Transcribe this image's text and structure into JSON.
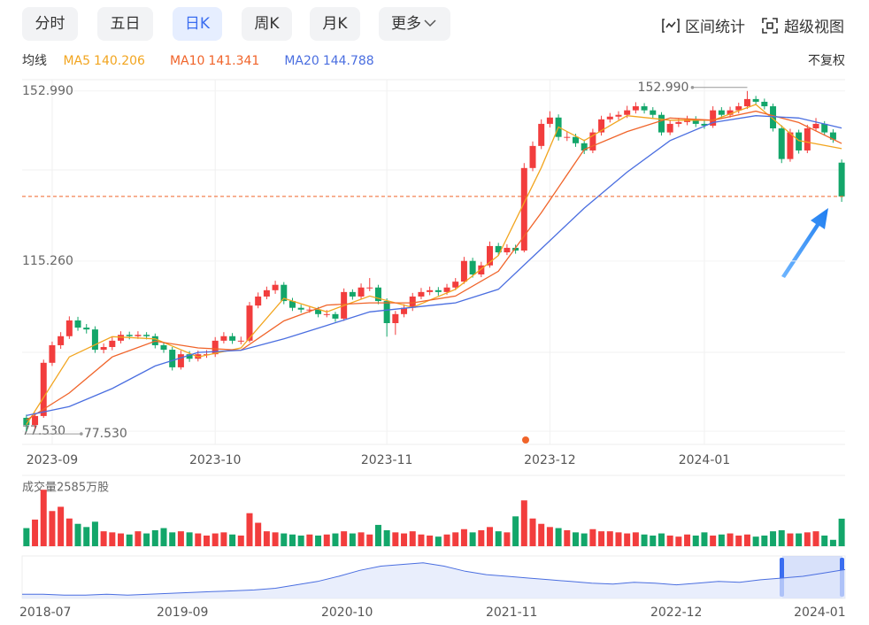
{
  "toolbar": {
    "tabs": [
      "分时",
      "五日",
      "日K",
      "周K",
      "月K",
      "更多"
    ],
    "active": 2,
    "tools": [
      "区间统计",
      "超级视图"
    ]
  },
  "legend": {
    "title": "均线",
    "adjust": "不复权"
  },
  "chart_data": {
    "type": "candlestick",
    "up_color": "#f23d3d",
    "down_color": "#13a66a",
    "xlim": [
      -0.5,
      95.4
    ],
    "ylim": [
      74.6,
      155.5
    ],
    "yticks": [
      {
        "value": 152.99,
        "label": "152.990"
      },
      {
        "value": 115.26,
        "label": "115.260"
      },
      {
        "value": 77.53,
        "label": "77.530"
      }
    ],
    "xticks": [
      {
        "value": 3,
        "label": "2023-09"
      },
      {
        "value": 22,
        "label": "2023-10"
      },
      {
        "value": 42,
        "label": "2023-11"
      },
      {
        "value": 61,
        "label": "2023-12"
      },
      {
        "value": 79,
        "label": "2024-01"
      }
    ],
    "candles": [
      [
        80.5,
        81.2,
        77.53,
        78.9
      ],
      [
        78.9,
        81.6,
        78.2,
        80.9
      ],
      [
        80.9,
        93.4,
        80.5,
        92.7
      ],
      [
        92.7,
        97.4,
        92.0,
        96.6
      ],
      [
        96.6,
        99.5,
        95.8,
        98.6
      ],
      [
        98.6,
        103.0,
        98.0,
        102.1
      ],
      [
        102.1,
        102.9,
        99.8,
        100.5
      ],
      [
        100.5,
        101.3,
        99.2,
        100.1
      ],
      [
        100.1,
        100.8,
        94.9,
        95.6
      ],
      [
        95.6,
        97.0,
        94.8,
        96.2
      ],
      [
        96.2,
        98.4,
        95.5,
        97.6
      ],
      [
        97.6,
        99.7,
        97.0,
        98.9
      ],
      [
        98.9,
        99.6,
        97.9,
        98.6
      ],
      [
        98.6,
        99.7,
        98.0,
        98.9
      ],
      [
        98.9,
        99.5,
        97.9,
        98.6
      ],
      [
        98.6,
        99.2,
        95.9,
        96.6
      ],
      [
        96.6,
        97.3,
        94.9,
        95.6
      ],
      [
        95.6,
        96.2,
        91.0,
        91.7
      ],
      [
        91.7,
        95.4,
        91.2,
        94.6
      ],
      [
        94.6,
        95.3,
        92.9,
        93.6
      ],
      [
        93.6,
        95.4,
        93.0,
        94.6
      ],
      [
        94.6,
        95.5,
        93.8,
        94.6
      ],
      [
        94.6,
        98.4,
        94.0,
        97.6
      ],
      [
        97.6,
        99.5,
        97.0,
        98.6
      ],
      [
        98.6,
        99.3,
        96.9,
        97.6
      ],
      [
        97.6,
        98.5,
        96.8,
        97.6
      ],
      [
        97.6,
        106.2,
        97.2,
        105.4
      ],
      [
        105.4,
        108.3,
        104.8,
        107.4
      ],
      [
        107.4,
        109.6,
        106.8,
        108.8
      ],
      [
        108.8,
        110.9,
        108.0,
        110.0
      ],
      [
        110.0,
        110.6,
        105.7,
        106.4
      ],
      [
        106.4,
        107.1,
        104.2,
        104.9
      ],
      [
        104.9,
        105.6,
        103.8,
        104.5
      ],
      [
        104.5,
        105.3,
        103.8,
        104.5
      ],
      [
        104.5,
        105.1,
        102.8,
        103.5
      ],
      [
        103.5,
        104.4,
        102.8,
        103.5
      ],
      [
        103.5,
        104.0,
        101.8,
        102.5
      ],
      [
        102.5,
        109.2,
        102.0,
        108.4
      ],
      [
        108.4,
        109.0,
        106.7,
        107.4
      ],
      [
        107.4,
        110.3,
        106.9,
        109.4
      ],
      [
        109.4,
        111.5,
        108.6,
        109.4
      ],
      [
        109.4,
        110.0,
        105.7,
        106.4
      ],
      [
        106.4,
        107.0,
        98.5,
        101.5
      ],
      [
        101.5,
        104.2,
        98.9,
        103.5
      ],
      [
        103.5,
        105.7,
        102.8,
        104.9
      ],
      [
        104.9,
        108.2,
        104.2,
        107.4
      ],
      [
        107.4,
        109.3,
        106.8,
        108.4
      ],
      [
        108.4,
        109.6,
        107.7,
        108.8
      ],
      [
        108.8,
        109.5,
        107.6,
        108.4
      ],
      [
        108.4,
        110.2,
        107.8,
        109.4
      ],
      [
        109.4,
        111.5,
        108.8,
        110.7
      ],
      [
        110.7,
        116.2,
        110.2,
        115.3
      ],
      [
        115.3,
        116.0,
        111.6,
        112.3
      ],
      [
        112.3,
        115.1,
        111.7,
        114.3
      ],
      [
        114.3,
        119.6,
        113.8,
        118.6
      ],
      [
        118.6,
        119.3,
        116.5,
        117.2
      ],
      [
        117.2,
        119.0,
        116.6,
        118.2
      ],
      [
        118.2,
        118.9,
        116.9,
        117.6
      ],
      [
        117.6,
        137.0,
        117.2,
        135.9
      ],
      [
        135.9,
        141.8,
        135.2,
        140.8
      ],
      [
        140.8,
        146.7,
        140.1,
        145.7
      ],
      [
        145.7,
        148.5,
        144.9,
        147.1
      ],
      [
        147.1,
        147.8,
        142.0,
        142.8
      ],
      [
        142.8,
        144.0,
        141.9,
        142.8
      ],
      [
        142.8,
        143.5,
        140.6,
        141.4
      ],
      [
        141.4,
        142.2,
        139.0,
        139.8
      ],
      [
        139.8,
        144.6,
        139.2,
        143.8
      ],
      [
        143.8,
        147.5,
        143.1,
        146.7
      ],
      [
        146.7,
        148.1,
        146.0,
        147.3
      ],
      [
        147.3,
        148.5,
        146.6,
        147.7
      ],
      [
        147.7,
        149.7,
        147.0,
        148.7
      ],
      [
        148.7,
        150.5,
        148.0,
        149.6
      ],
      [
        149.6,
        150.3,
        148.0,
        148.7
      ],
      [
        148.7,
        149.4,
        147.0,
        147.7
      ],
      [
        147.7,
        148.3,
        143.1,
        143.8
      ],
      [
        143.8,
        146.5,
        143.2,
        145.7
      ],
      [
        145.7,
        147.0,
        145.0,
        146.1
      ],
      [
        146.1,
        147.5,
        145.4,
        146.7
      ],
      [
        146.7,
        147.4,
        145.0,
        145.7
      ],
      [
        145.7,
        146.4,
        144.6,
        145.3
      ],
      [
        145.3,
        149.6,
        144.8,
        148.7
      ],
      [
        148.7,
        149.4,
        147.0,
        147.7
      ],
      [
        147.7,
        149.5,
        147.1,
        148.7
      ],
      [
        148.7,
        150.4,
        148.0,
        149.6
      ],
      [
        149.6,
        152.99,
        149.0,
        151.2
      ],
      [
        151.2,
        151.9,
        149.9,
        150.6
      ],
      [
        150.6,
        151.3,
        148.9,
        149.6
      ],
      [
        149.6,
        150.2,
        144.0,
        144.7
      ],
      [
        144.7,
        145.4,
        137.0,
        137.9
      ],
      [
        137.9,
        144.6,
        137.3,
        143.8
      ],
      [
        143.8,
        144.4,
        139.1,
        139.8
      ],
      [
        139.8,
        145.5,
        139.2,
        144.7
      ],
      [
        144.7,
        147.0,
        144.0,
        145.7
      ],
      [
        145.7,
        146.3,
        143.1,
        143.8
      ],
      [
        143.8,
        144.5,
        141.5,
        142.2
      ],
      [
        137.1,
        137.8,
        128.4,
        129.6
      ]
    ],
    "series": [
      {
        "name": "MA5",
        "color": "#f2a51f",
        "x": [
          0,
          5,
          10,
          15,
          20,
          25,
          30,
          35,
          40,
          45,
          50,
          55,
          60,
          62,
          65,
          70,
          75,
          80,
          85,
          90,
          95
        ],
        "values": [
          79,
          94,
          98.5,
          98,
          94,
          96,
          107,
          104,
          107.5,
          105,
          109,
          116.5,
          136,
          145,
          142,
          147.5,
          146.5,
          146.5,
          150,
          142,
          140.206
        ]
      },
      {
        "name": "MA10",
        "color": "#f0642a",
        "x": [
          0,
          5,
          10,
          15,
          20,
          25,
          30,
          35,
          40,
          45,
          50,
          55,
          60,
          65,
          70,
          75,
          80,
          85,
          90,
          95
        ],
        "values": [
          80,
          86,
          94,
          97.5,
          96,
          95.5,
          102,
          105.5,
          106,
          106,
          107.5,
          113,
          126,
          140,
          144,
          147,
          146.5,
          148.5,
          146,
          141.341
        ]
      },
      {
        "name": "MA20",
        "color": "#4a6ee0",
        "x": [
          0,
          5,
          10,
          15,
          20,
          25,
          30,
          35,
          40,
          45,
          50,
          55,
          60,
          65,
          70,
          75,
          80,
          85,
          90,
          95
        ],
        "values": [
          81,
          83,
          87,
          92,
          95,
          95.5,
          98,
          101,
          104,
          105,
          106,
          109,
          118,
          127,
          135,
          142,
          146,
          147.5,
          147,
          144.788
        ]
      }
    ],
    "annotations": [
      {
        "value": 152.99,
        "label": "152.990"
      },
      {
        "value": 77.53,
        "label": "77.530"
      }
    ],
    "volume": {
      "label": "成交量2585万股",
      "ylim": [
        0,
        5400
      ],
      "values": [
        1700,
        2500,
        5300,
        3300,
        3700,
        2600,
        2100,
        1800,
        2300,
        1400,
        1300,
        1200,
        1100,
        1400,
        1200,
        1500,
        1700,
        1300,
        1400,
        1300,
        1200,
        1000,
        1200,
        1300,
        1100,
        1000,
        3100,
        2200,
        1400,
        1300,
        1200,
        1100,
        1000,
        1100,
        1000,
        1100,
        1200,
        1400,
        1200,
        1300,
        1100,
        2000,
        1500,
        1300,
        1200,
        1400,
        1100,
        1000,
        900,
        1100,
        1300,
        1600,
        1300,
        1500,
        1800,
        1400,
        1300,
        2800,
        4300,
        2600,
        2100,
        1800,
        1700,
        1500,
        1300,
        1200,
        1600,
        1400,
        1400,
        1300,
        1200,
        1300,
        1100,
        1000,
        1200,
        1000,
        900,
        1100,
        1000,
        1300,
        1000,
        1100,
        1200,
        1000,
        1100,
        900,
        1000,
        1400,
        1500,
        1200,
        1200,
        1300,
        1400,
        1000,
        600,
        2585
      ]
    },
    "navigator": {
      "xlim": [
        0,
        39
      ],
      "ylim": [
        0,
        50
      ],
      "values": [
        5,
        5,
        4,
        4,
        5,
        4,
        5,
        6,
        7,
        8,
        9,
        10,
        12,
        16,
        20,
        26,
        33,
        38,
        40,
        42,
        38,
        32,
        28,
        26,
        24,
        22,
        20,
        18,
        17,
        19,
        18,
        16,
        18,
        20,
        19,
        22,
        24,
        26,
        30,
        34
      ],
      "xticks": [
        {
          "value": 1.1,
          "label": "2018-07"
        },
        {
          "value": 7.6,
          "label": "2019-09"
        },
        {
          "value": 15.4,
          "label": "2020-10"
        },
        {
          "value": 23.2,
          "label": "2021-11"
        },
        {
          "value": 31.0,
          "label": "2022-12"
        },
        {
          "value": 37.8,
          "label": "2024-01"
        }
      ]
    }
  }
}
